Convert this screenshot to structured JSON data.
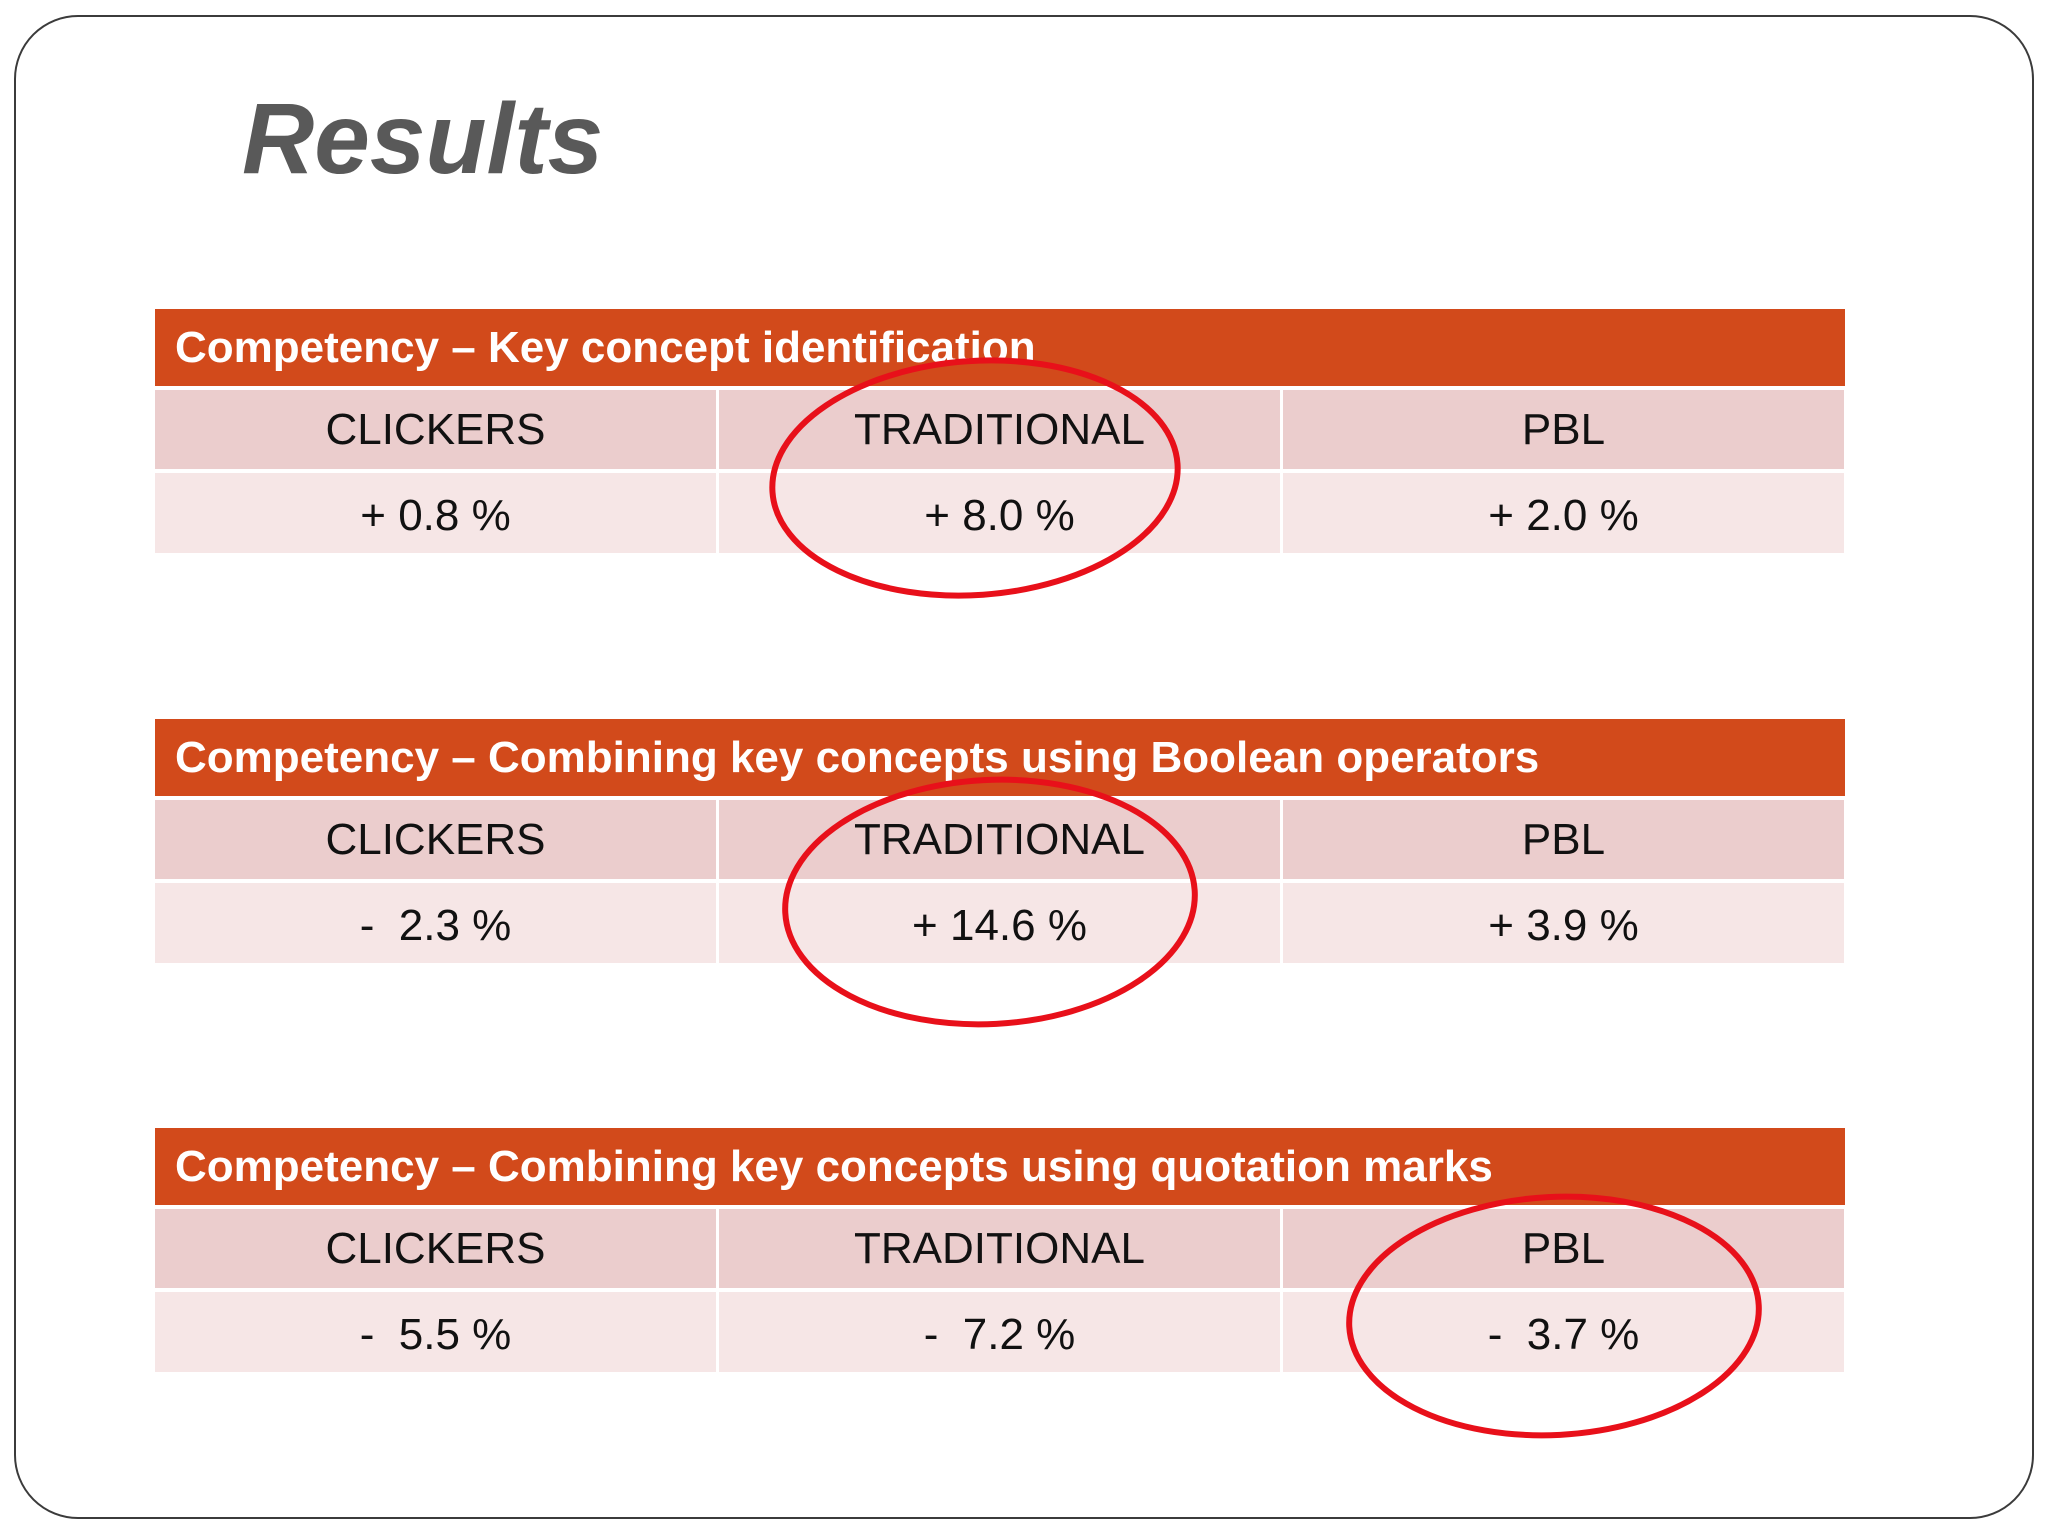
{
  "title": "Results",
  "tables": [
    {
      "header": "Competency – Key concept identification",
      "columns": [
        "CLICKERS",
        "TRADITIONAL",
        "PBL"
      ],
      "values": [
        "+ 0.8 %",
        "+ 8.0 %",
        "+ 2.0 %"
      ]
    },
    {
      "header": "Competency – Combining key concepts using Boolean operators",
      "columns": [
        "CLICKERS",
        "TRADITIONAL",
        "PBL"
      ],
      "values": [
        "-  2.3 %",
        "+ 14.6 %",
        "+ 3.9 %"
      ]
    },
    {
      "header": "Competency – Combining key concepts using quotation marks",
      "columns": [
        "CLICKERS",
        "TRADITIONAL",
        "PBL"
      ],
      "values": [
        "-  5.5 %",
        "-  7.2 %",
        "-  3.7 %"
      ]
    }
  ],
  "colors": {
    "header_bg": "#d24a1b",
    "label_row_bg": "#ebcdcd",
    "value_row_bg": "#f6e6e6",
    "title_color": "#595959",
    "highlight_circle": "#e8101a"
  }
}
